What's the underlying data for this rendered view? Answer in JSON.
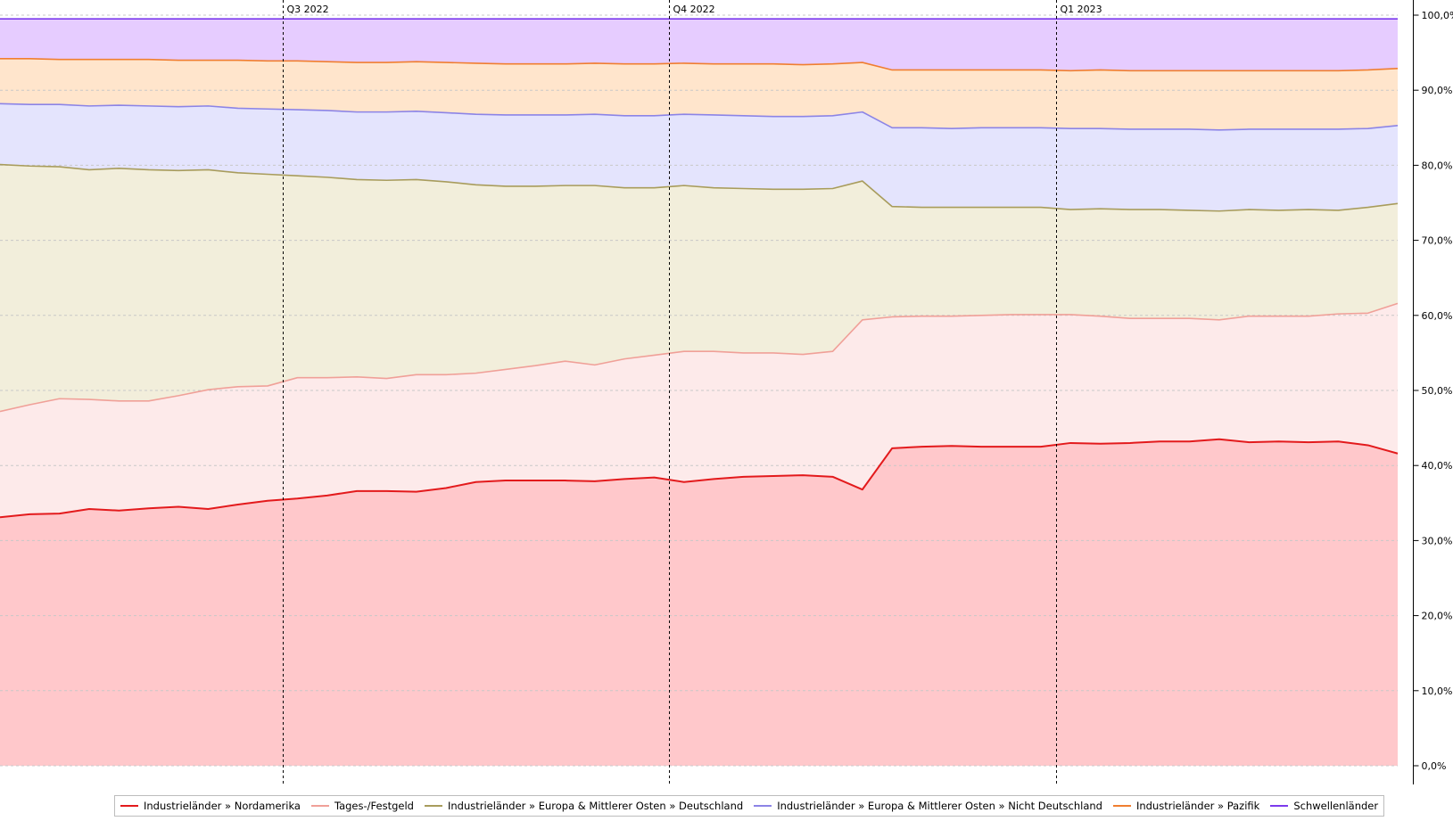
{
  "chart_data": {
    "type": "area",
    "stacked": true,
    "x": [
      0,
      1,
      2,
      3,
      4,
      5,
      6,
      7,
      8,
      9,
      10,
      11,
      12,
      13,
      14,
      15,
      16,
      17,
      18,
      19,
      20,
      21,
      22,
      23,
      24,
      25,
      26,
      27,
      28,
      29,
      30,
      31,
      32,
      33,
      34,
      35,
      36,
      37,
      38,
      39,
      40,
      41,
      42,
      43,
      44,
      45,
      46,
      47
    ],
    "x_quarter_marks": [
      {
        "label": "Q3 2022",
        "x": 9.5
      },
      {
        "label": "Q4 2022",
        "x": 22.5
      },
      {
        "label": "Q1 2023",
        "x": 35.5
      }
    ],
    "ylim": [
      0,
      100
    ],
    "y_ticks": [
      "0,0%",
      "10,0%",
      "20,0%",
      "30,0%",
      "40,0%",
      "50,0%",
      "60,0%",
      "70,0%",
      "80,0%",
      "90,0%",
      "100,0%"
    ],
    "grid": true,
    "legend_position": "bottom",
    "series": [
      {
        "name": "Industrieländer » Nordamerika",
        "line_color": "#e31a1c",
        "fill_color": "#ffc8cb",
        "cumulative": [
          33.1,
          33.5,
          33.6,
          34.2,
          34.0,
          34.3,
          34.5,
          34.2,
          34.8,
          35.3,
          35.6,
          36.0,
          36.6,
          36.6,
          36.5,
          37.0,
          37.8,
          38.0,
          38.0,
          38.0,
          37.9,
          38.2,
          38.4,
          37.8,
          38.2,
          38.5,
          38.6,
          38.7,
          38.5,
          36.8,
          42.3,
          42.5,
          42.6,
          42.5,
          42.5,
          42.5,
          43.0,
          42.9,
          43.0,
          43.2,
          43.2,
          43.5,
          43.1,
          43.2,
          43.1,
          43.2,
          42.7,
          41.6
        ]
      },
      {
        "name": "Tages-/Festgeld",
        "line_color": "#f0a098",
        "fill_color": "#fdeaea",
        "cumulative": [
          47.2,
          48.1,
          48.9,
          48.8,
          48.6,
          48.6,
          49.3,
          50.1,
          50.5,
          50.6,
          51.7,
          51.7,
          51.8,
          51.6,
          52.1,
          52.1,
          52.3,
          52.8,
          53.3,
          53.9,
          53.4,
          54.2,
          54.7,
          55.2,
          55.2,
          55.0,
          55.0,
          54.8,
          55.2,
          59.4,
          59.8,
          59.9,
          59.9,
          60.0,
          60.1,
          60.1,
          60.1,
          59.9,
          59.6,
          59.6,
          59.6,
          59.4,
          59.9,
          59.9,
          59.9,
          60.2,
          60.3,
          61.6
        ]
      },
      {
        "name": "Industrieländer » Europa & Mittlerer Osten » Deutschland",
        "line_color": "#a89c5c",
        "fill_color": "#f2eedb",
        "cumulative": [
          80.1,
          79.9,
          79.8,
          79.4,
          79.6,
          79.4,
          79.3,
          79.4,
          79.0,
          78.8,
          78.6,
          78.4,
          78.1,
          78.0,
          78.1,
          77.8,
          77.4,
          77.2,
          77.2,
          77.3,
          77.3,
          77.0,
          77.0,
          77.3,
          77.0,
          76.9,
          76.8,
          76.8,
          76.9,
          77.9,
          74.5,
          74.4,
          74.4,
          74.4,
          74.4,
          74.4,
          74.1,
          74.2,
          74.1,
          74.1,
          74.0,
          73.9,
          74.1,
          74.0,
          74.1,
          74.0,
          74.4,
          74.9
        ]
      },
      {
        "name": "Industrieländer » Europa & Mittlerer Osten » Nicht Deutschland",
        "line_color": "#8c84e6",
        "fill_color": "#e4e4fd",
        "cumulative": [
          88.2,
          88.1,
          88.1,
          87.9,
          88.0,
          87.9,
          87.8,
          87.9,
          87.6,
          87.5,
          87.4,
          87.3,
          87.1,
          87.1,
          87.2,
          87.0,
          86.8,
          86.7,
          86.7,
          86.7,
          86.8,
          86.6,
          86.6,
          86.8,
          86.7,
          86.6,
          86.5,
          86.5,
          86.6,
          87.1,
          85.0,
          85.0,
          84.9,
          85.0,
          85.0,
          85.0,
          84.9,
          84.9,
          84.8,
          84.8,
          84.8,
          84.7,
          84.8,
          84.8,
          84.8,
          84.8,
          84.9,
          85.3
        ]
      },
      {
        "name": "Industrieländer » Pazifik",
        "line_color": "#f07e30",
        "fill_color": "#ffe5cc",
        "cumulative": [
          94.2,
          94.2,
          94.1,
          94.1,
          94.1,
          94.1,
          94.0,
          94.0,
          94.0,
          93.9,
          93.9,
          93.8,
          93.7,
          93.7,
          93.8,
          93.7,
          93.6,
          93.5,
          93.5,
          93.5,
          93.6,
          93.5,
          93.5,
          93.6,
          93.5,
          93.5,
          93.5,
          93.4,
          93.5,
          93.7,
          92.7,
          92.7,
          92.7,
          92.7,
          92.7,
          92.7,
          92.6,
          92.7,
          92.6,
          92.6,
          92.6,
          92.6,
          92.6,
          92.6,
          92.6,
          92.6,
          92.7,
          92.9
        ]
      },
      {
        "name": "Schwellenländer",
        "line_color": "#7c3aed",
        "fill_color": "#e6ccff",
        "cumulative": [
          99.5,
          99.5,
          99.5,
          99.5,
          99.5,
          99.5,
          99.5,
          99.5,
          99.5,
          99.5,
          99.5,
          99.5,
          99.5,
          99.5,
          99.5,
          99.5,
          99.5,
          99.5,
          99.5,
          99.5,
          99.5,
          99.5,
          99.5,
          99.5,
          99.5,
          99.5,
          99.5,
          99.5,
          99.5,
          99.5,
          99.5,
          99.5,
          99.5,
          99.5,
          99.5,
          99.5,
          99.5,
          99.5,
          99.5,
          99.5,
          99.5,
          99.5,
          99.5,
          99.5,
          99.5,
          99.5,
          99.5,
          99.5
        ]
      }
    ]
  }
}
